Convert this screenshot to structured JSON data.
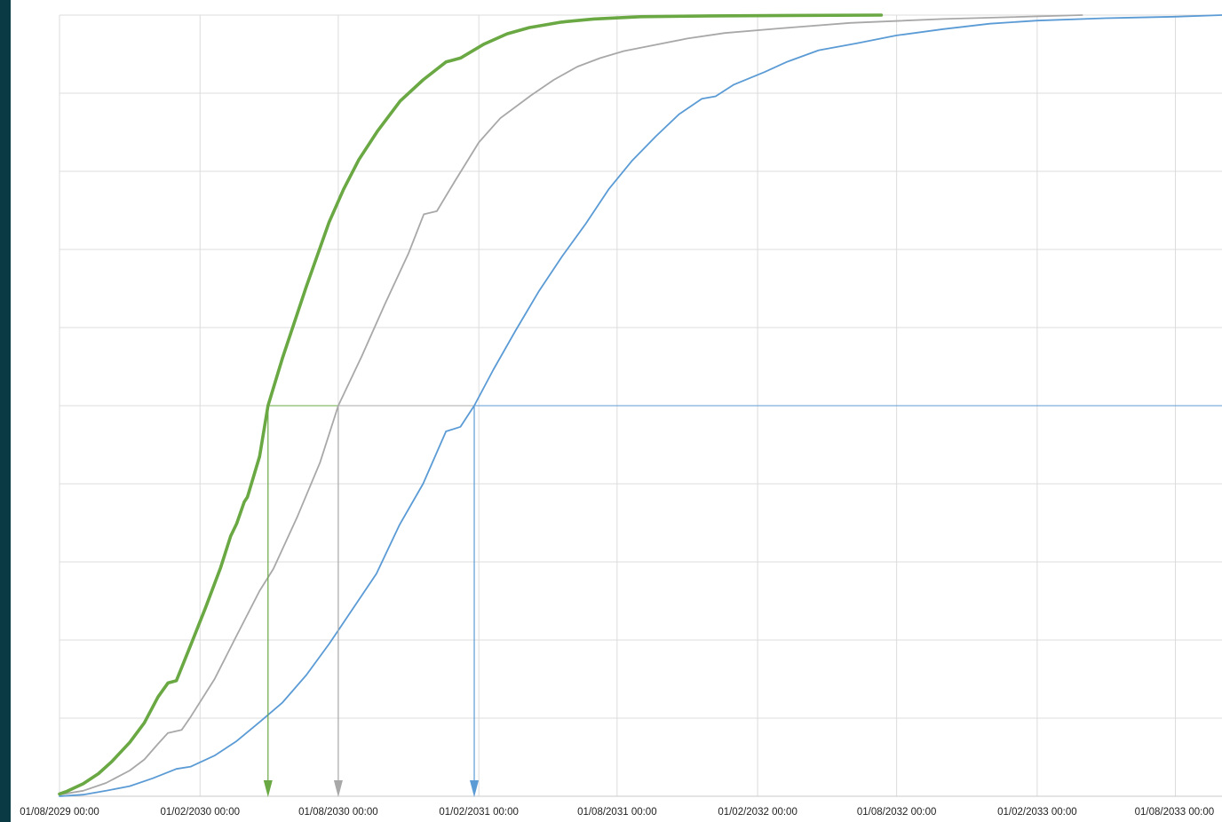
{
  "chart_data": {
    "type": "line",
    "title": "",
    "xlabel": "",
    "ylabel": "",
    "x_ticks": [
      "01/08/2029 00:00",
      "01/02/2030 00:00",
      "01/08/2030 00:00",
      "01/02/2031 00:00",
      "01/08/2031 00:00",
      "01/02/2032 00:00",
      "01/08/2032 00:00",
      "01/02/2033 00:00",
      "01/08/2033 00:00"
    ],
    "x_tick_dates": [
      "2029-08-01",
      "2030-02-01",
      "2030-08-01",
      "2031-02-01",
      "2031-08-01",
      "2032-02-01",
      "2032-08-01",
      "2033-02-01",
      "2033-08-01"
    ],
    "xlim": [
      "2029-08-01",
      "2033-10-01"
    ],
    "ylim": [
      0,
      1
    ],
    "y_gridlines": 10,
    "y_tick_labels_visible": false,
    "grid": true,
    "reference_level": 0.5,
    "series": [
      {
        "color": "#6aa843",
        "emphasis": "thick",
        "marker_date": "2030-05-01",
        "points": [
          [
            "2029-08-01",
            0.003
          ],
          [
            "2029-08-10",
            0.006
          ],
          [
            "2029-09-01",
            0.016
          ],
          [
            "2029-09-21",
            0.029
          ],
          [
            "2029-10-08",
            0.044
          ],
          [
            "2029-11-01",
            0.069
          ],
          [
            "2029-11-20",
            0.094
          ],
          [
            "2029-12-08",
            0.127
          ],
          [
            "2029-12-21",
            0.145
          ],
          [
            "2030-01-01",
            0.148
          ],
          [
            "2030-01-20",
            0.194
          ],
          [
            "2030-02-08",
            0.241
          ],
          [
            "2030-02-28",
            0.293
          ],
          [
            "2030-03-13",
            0.333
          ],
          [
            "2030-03-21",
            0.349
          ],
          [
            "2030-03-31",
            0.377
          ],
          [
            "2030-04-04",
            0.383
          ],
          [
            "2030-04-20",
            0.435
          ],
          [
            "2030-05-01",
            0.5
          ],
          [
            "2030-05-20",
            0.561
          ],
          [
            "2030-06-20",
            0.652
          ],
          [
            "2030-07-20",
            0.735
          ],
          [
            "2030-08-08",
            0.777
          ],
          [
            "2030-08-28",
            0.815
          ],
          [
            "2030-09-21",
            0.851
          ],
          [
            "2030-10-21",
            0.89
          ],
          [
            "2030-11-20",
            0.917
          ],
          [
            "2030-12-20",
            0.94
          ],
          [
            "2031-01-08",
            0.945
          ],
          [
            "2031-02-08",
            0.963
          ],
          [
            "2031-03-10",
            0.976
          ],
          [
            "2031-04-08",
            0.984
          ],
          [
            "2031-05-20",
            0.991
          ],
          [
            "2031-07-01",
            0.995
          ],
          [
            "2031-09-01",
            0.998
          ],
          [
            "2031-12-01",
            0.999
          ],
          [
            "2032-07-12",
            1.0
          ]
        ]
      },
      {
        "color": "#a8a8a8",
        "emphasis": "normal",
        "marker_date": "2030-08-01",
        "points": [
          [
            "2029-08-01",
            0.002
          ],
          [
            "2029-09-01",
            0.007
          ],
          [
            "2029-10-01",
            0.017
          ],
          [
            "2029-11-01",
            0.033
          ],
          [
            "2029-11-20",
            0.047
          ],
          [
            "2029-12-08",
            0.067
          ],
          [
            "2029-12-21",
            0.081
          ],
          [
            "2030-01-08",
            0.085
          ],
          [
            "2030-01-20",
            0.102
          ],
          [
            "2030-02-20",
            0.15
          ],
          [
            "2030-03-20",
            0.204
          ],
          [
            "2030-04-20",
            0.263
          ],
          [
            "2030-05-08",
            0.291
          ],
          [
            "2030-06-08",
            0.357
          ],
          [
            "2030-07-08",
            0.427
          ],
          [
            "2030-08-01",
            0.5
          ],
          [
            "2030-09-01",
            0.564
          ],
          [
            "2030-10-01",
            0.63
          ],
          [
            "2030-11-01",
            0.695
          ],
          [
            "2030-11-21",
            0.745
          ],
          [
            "2030-12-08",
            0.749
          ],
          [
            "2031-01-01",
            0.788
          ],
          [
            "2031-02-01",
            0.837
          ],
          [
            "2031-03-01",
            0.868
          ],
          [
            "2031-04-10",
            0.897
          ],
          [
            "2031-05-10",
            0.917
          ],
          [
            "2031-06-10",
            0.934
          ],
          [
            "2031-07-10",
            0.945
          ],
          [
            "2031-08-10",
            0.954
          ],
          [
            "2031-09-21",
            0.962
          ],
          [
            "2031-11-01",
            0.97
          ],
          [
            "2031-12-20",
            0.977
          ],
          [
            "2032-03-01",
            0.983
          ],
          [
            "2032-06-01",
            0.99
          ],
          [
            "2032-10-01",
            0.995
          ],
          [
            "2033-04-01",
            1.0
          ]
        ]
      },
      {
        "color": "#5b9bd5",
        "emphasis": "normal",
        "marker_date": "2031-01-26",
        "points": [
          [
            "2029-08-01",
            0.0
          ],
          [
            "2029-09-01",
            0.002
          ],
          [
            "2029-10-01",
            0.007
          ],
          [
            "2029-11-01",
            0.013
          ],
          [
            "2029-12-01",
            0.023
          ],
          [
            "2030-01-01",
            0.035
          ],
          [
            "2030-01-20",
            0.038
          ],
          [
            "2030-02-20",
            0.052
          ],
          [
            "2030-03-20",
            0.07
          ],
          [
            "2030-04-20",
            0.095
          ],
          [
            "2030-05-20",
            0.12
          ],
          [
            "2030-06-20",
            0.155
          ],
          [
            "2030-07-20",
            0.195
          ],
          [
            "2030-08-20",
            0.24
          ],
          [
            "2030-09-20",
            0.285
          ],
          [
            "2030-10-20",
            0.347
          ],
          [
            "2030-11-20",
            0.4
          ],
          [
            "2030-12-20",
            0.467
          ],
          [
            "2031-01-08",
            0.473
          ],
          [
            "2031-01-26",
            0.5
          ],
          [
            "2031-02-20",
            0.546
          ],
          [
            "2031-03-21",
            0.596
          ],
          [
            "2031-04-21",
            0.647
          ],
          [
            "2031-05-21",
            0.691
          ],
          [
            "2031-06-21",
            0.733
          ],
          [
            "2031-07-21",
            0.777
          ],
          [
            "2031-08-21",
            0.814
          ],
          [
            "2031-09-21",
            0.845
          ],
          [
            "2031-10-21",
            0.873
          ],
          [
            "2031-11-20",
            0.893
          ],
          [
            "2031-12-08",
            0.896
          ],
          [
            "2032-01-01",
            0.911
          ],
          [
            "2032-02-10",
            0.927
          ],
          [
            "2032-03-10",
            0.94
          ],
          [
            "2032-04-21",
            0.955
          ],
          [
            "2032-06-10",
            0.964
          ],
          [
            "2032-08-01",
            0.974
          ],
          [
            "2032-10-01",
            0.982
          ],
          [
            "2032-12-01",
            0.989
          ],
          [
            "2033-02-01",
            0.993
          ],
          [
            "2033-05-01",
            0.996
          ],
          [
            "2033-08-01",
            0.998
          ],
          [
            "2033-10-01",
            1.0
          ]
        ]
      }
    ]
  }
}
